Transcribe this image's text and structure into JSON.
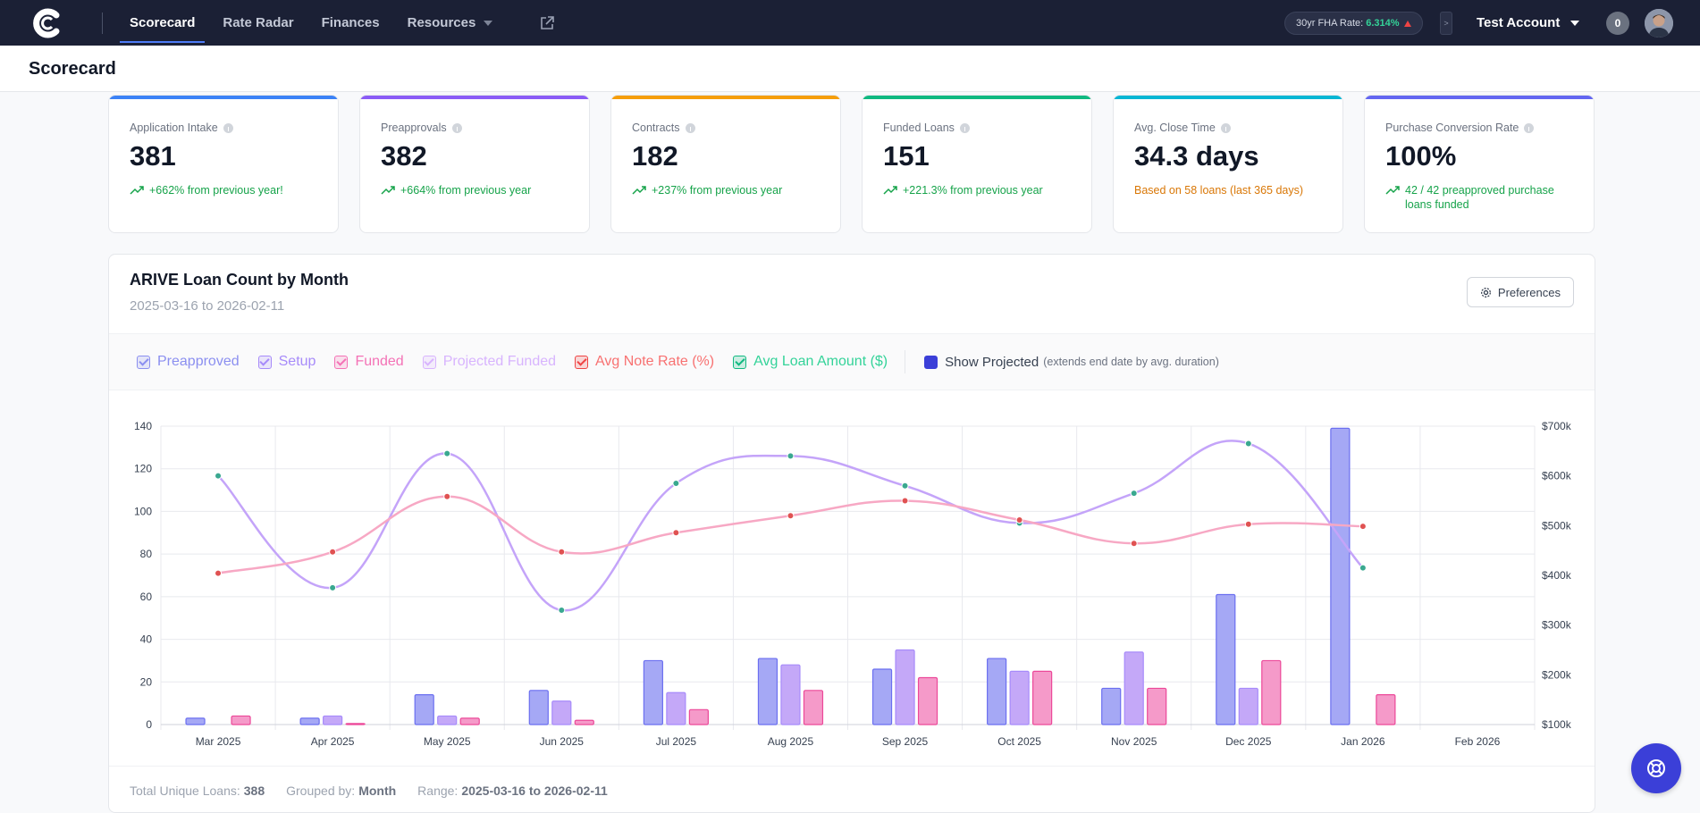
{
  "nav": {
    "tabs": [
      {
        "label": "Scorecard"
      },
      {
        "label": "Rate Radar"
      },
      {
        "label": "Finances"
      },
      {
        "label": "Resources"
      }
    ],
    "fha_label": "30yr FHA Rate:",
    "fha_value": "6.314%",
    "account_name": "Test Account",
    "notification_count": "0"
  },
  "page": {
    "title": "Scorecard"
  },
  "kpis": [
    {
      "label": "Application Intake",
      "value": "381",
      "sub": "+662% from previous year!",
      "color": "#3b82f6",
      "tone": "green"
    },
    {
      "label": "Preapprovals",
      "value": "382",
      "sub": "+664% from previous year",
      "color": "#8b5cf6",
      "tone": "green"
    },
    {
      "label": "Contracts",
      "value": "182",
      "sub": "+237% from previous year",
      "color": "#f59e0b",
      "tone": "green"
    },
    {
      "label": "Funded Loans",
      "value": "151",
      "sub": "+221.3% from previous year",
      "color": "#10b981",
      "tone": "green"
    },
    {
      "label": "Avg. Close Time",
      "value": "34.3 days",
      "sub": "Based on 58 loans (last 365 days)",
      "color": "#06b6d4",
      "tone": "orange"
    },
    {
      "label": "Purchase Conversion Rate",
      "value": "100%",
      "sub": "42 / 42 preapproved purchase loans funded",
      "color": "#6366f1",
      "tone": "green"
    }
  ],
  "chart_panel": {
    "title": "ARIVE Loan Count by Month",
    "date_range": "2025-03-16 to 2026-02-11",
    "preferences_label": "Preferences",
    "legend": [
      {
        "label": "Preapproved",
        "color": "#8b8ff0",
        "text_color": "#8b8ff0"
      },
      {
        "label": "Setup",
        "color": "#a78bfa",
        "text_color": "#a78bfa"
      },
      {
        "label": "Funded",
        "color": "#f472b6",
        "text_color": "#f472b6"
      },
      {
        "label": "Projected Funded",
        "color": "#d8b4fe",
        "text_color": "#d8b4fe"
      },
      {
        "label": "Avg Note Rate (%)",
        "color": "#ef4444",
        "text_color": "#f87171"
      },
      {
        "label": "Avg Loan Amount ($)",
        "color": "#10b981",
        "text_color": "#34d399"
      }
    ],
    "show_projected_label": "Show Projected",
    "show_projected_hint": "(extends end date by avg. duration)",
    "footer": {
      "total_label": "Total Unique Loans:",
      "total_value": "388",
      "grouped_label": "Grouped by:",
      "grouped_value": "Month",
      "range_label": "Range:",
      "range_value": "2025-03-16 to 2026-02-11"
    }
  },
  "chart_data": {
    "type": "bar",
    "categories": [
      "Mar 2025",
      "Apr 2025",
      "May 2025",
      "Jun 2025",
      "Jul 2025",
      "Aug 2025",
      "Sep 2025",
      "Oct 2025",
      "Nov 2025",
      "Dec 2025",
      "Jan 2026",
      "Feb 2026"
    ],
    "ylim": [
      0,
      140
    ],
    "yticks": [
      0,
      20,
      40,
      60,
      80,
      100,
      120,
      140
    ],
    "y2lim": [
      100000,
      700000
    ],
    "y2ticks": [
      "$100k",
      "$200k",
      "$300k",
      "$400k",
      "$500k",
      "$600k",
      "$700k"
    ],
    "series": [
      {
        "name": "Preapproved",
        "values": [
          3,
          3,
          14,
          16,
          30,
          31,
          26,
          31,
          17,
          61,
          139,
          0
        ],
        "color": "#a5a8f5",
        "stroke": "#6b6ff0"
      },
      {
        "name": "Setup",
        "values": [
          0,
          4,
          4,
          11,
          15,
          28,
          35,
          25,
          34,
          17,
          0,
          0
        ],
        "color": "#c4a8f8",
        "stroke": "#a78bfa"
      },
      {
        "name": "Funded",
        "values": [
          4,
          0.5,
          3,
          2,
          7,
          16,
          22,
          25,
          17,
          30,
          14,
          0
        ],
        "color": "#f59ac9",
        "stroke": "#ec4899"
      }
    ],
    "line_series": [
      {
        "name": "Avg Loan Amount ($)",
        "axis": "right",
        "values": [
          600000,
          375000,
          645000,
          330000,
          585000,
          640000,
          580000,
          505000,
          565000,
          665000,
          415000,
          null
        ],
        "line_color": "#c4a4f9",
        "point_color": "#3aa890"
      },
      {
        "name": "Avg Note Rate (%)",
        "axis": "left",
        "values": [
          71,
          81,
          107,
          81,
          90,
          98,
          105,
          96,
          85,
          94,
          93,
          null
        ],
        "line_color": "#f7a8c4",
        "point_color": "#e05252"
      }
    ],
    "grid": true
  }
}
